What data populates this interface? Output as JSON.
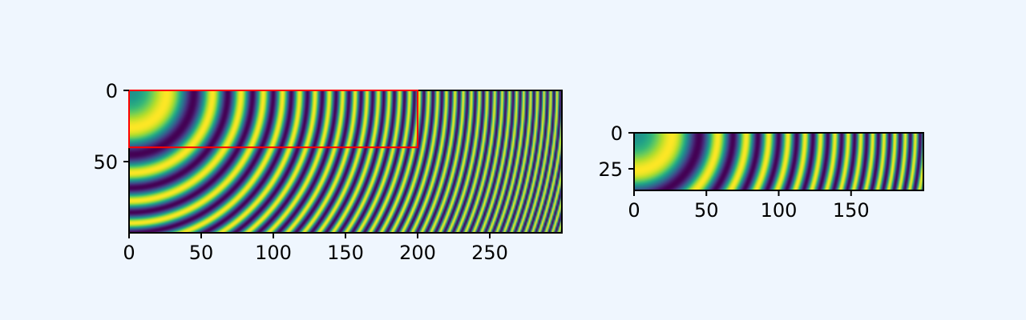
{
  "chart_data": [
    {
      "type": "heatmap",
      "pattern": "concentric-rings",
      "colormap": "viridis",
      "image_shape": {
        "rows": 100,
        "cols": 300
      },
      "xlim": [
        0,
        300
      ],
      "ylim": [
        100,
        0
      ],
      "x_ticks": [
        0,
        50,
        100,
        150,
        200,
        250
      ],
      "y_ticks": [
        0,
        50
      ],
      "x_tick_labels": [
        "0",
        "50",
        "100",
        "150",
        "200",
        "250"
      ],
      "y_tick_labels": [
        "0",
        "50"
      ],
      "annotations": [
        {
          "type": "rectangle",
          "x": [
            0,
            200
          ],
          "y": [
            0,
            40
          ],
          "edgecolor": "#ff0000"
        }
      ],
      "title": "",
      "xlabel": "",
      "ylabel": ""
    },
    {
      "type": "heatmap",
      "pattern": "concentric-rings",
      "colormap": "viridis",
      "image_shape": {
        "rows": 40,
        "cols": 200
      },
      "xlim": [
        0,
        200
      ],
      "ylim": [
        40,
        0
      ],
      "x_ticks": [
        0,
        50,
        100,
        150
      ],
      "y_ticks": [
        0,
        25
      ],
      "x_tick_labels": [
        "0",
        "50",
        "100",
        "150"
      ],
      "y_tick_labels": [
        "0",
        "25"
      ],
      "title": "",
      "xlabel": "",
      "ylabel": ""
    }
  ]
}
